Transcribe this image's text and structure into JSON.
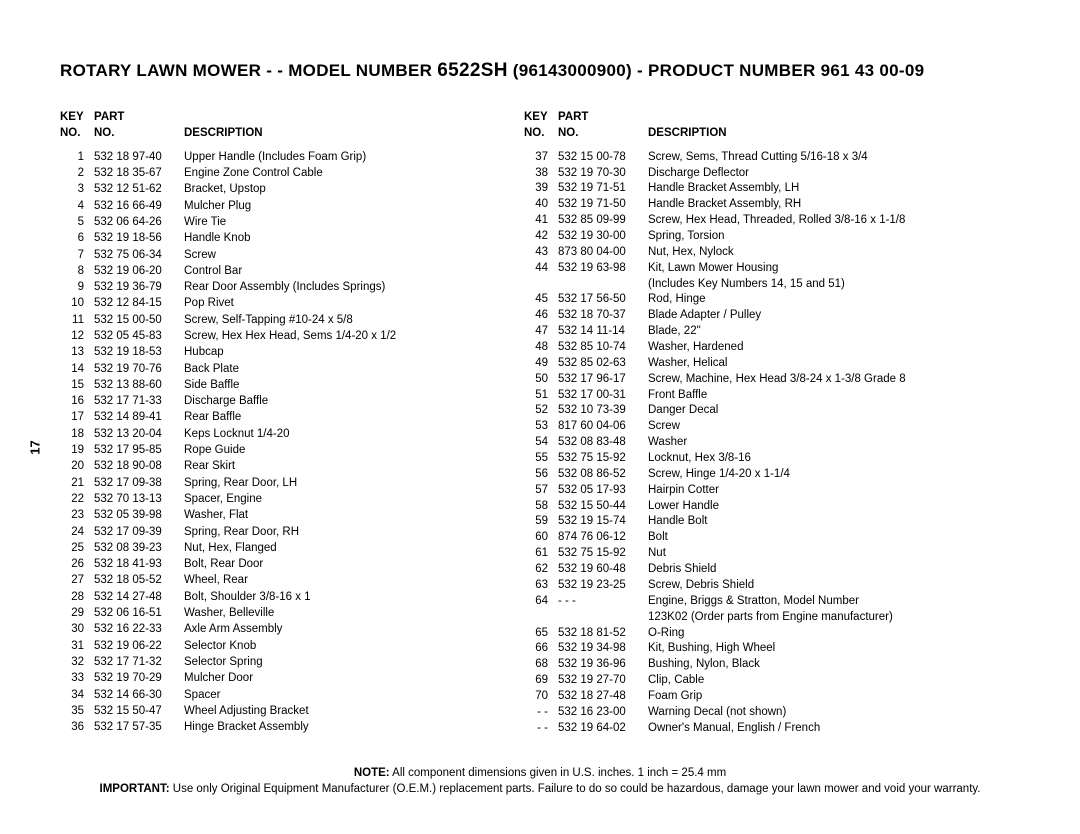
{
  "header": {
    "product_line": "ROTARY LAWN MOWER - - MODEL NUMBER ",
    "model": "6522SH",
    "model_suffix": " (96143000900) - PRODUCT NUMBER 961 43 00-09"
  },
  "page_number": "17",
  "columns": {
    "key": "KEY\nNO.",
    "part": "PART\nNO.",
    "desc": "DESCRIPTION"
  },
  "left": [
    {
      "k": "1",
      "p": "532 18 97-40",
      "d": "Upper Handle (Includes Foam Grip)"
    },
    {
      "k": "2",
      "p": "532 18 35-67",
      "d": "Engine Zone Control Cable"
    },
    {
      "k": "3",
      "p": "532 12 51-62",
      "d": "Bracket, Upstop"
    },
    {
      "k": "4",
      "p": "532 16 66-49",
      "d": "Mulcher Plug"
    },
    {
      "k": "5",
      "p": "532 06 64-26",
      "d": "Wire Tie"
    },
    {
      "k": "6",
      "p": "532 19 18-56",
      "d": "Handle Knob"
    },
    {
      "k": "7",
      "p": "532 75 06-34",
      "d": "Screw"
    },
    {
      "k": "8",
      "p": "532 19 06-20",
      "d": "Control Bar"
    },
    {
      "k": "9",
      "p": "532 19 36-79",
      "d": "Rear Door Assembly (Includes Springs)"
    },
    {
      "k": "10",
      "p": "532 12 84-15",
      "d": "Pop Rivet"
    },
    {
      "k": "11",
      "p": "532 15 00-50",
      "d": "Screw, Self-Tapping  #10-24 x 5/8"
    },
    {
      "k": "12",
      "p": "532 05 45-83",
      "d": "Screw, Hex Hex Head, Sems  1/4-20 x 1/2"
    },
    {
      "k": "13",
      "p": "532 19 18-53",
      "d": "Hubcap"
    },
    {
      "k": "14",
      "p": "532 19 70-76",
      "d": "Back Plate"
    },
    {
      "k": "15",
      "p": "532 13 88-60",
      "d": "Side Baffle"
    },
    {
      "k": "16",
      "p": "532 17 71-33",
      "d": "Discharge Baffle"
    },
    {
      "k": "17",
      "p": "532 14 89-41",
      "d": "Rear Baffle"
    },
    {
      "k": "18",
      "p": "532 13 20-04",
      "d": "Keps Locknut  1/4-20"
    },
    {
      "k": "19",
      "p": "532 17 95-85",
      "d": "Rope Guide"
    },
    {
      "k": "20",
      "p": "532 18 90-08",
      "d": "Rear Skirt"
    },
    {
      "k": "21",
      "p": "532 17 09-38",
      "d": "Spring, Rear Door, LH"
    },
    {
      "k": "22",
      "p": "532 70 13-13",
      "d": "Spacer, Engine"
    },
    {
      "k": "23",
      "p": "532 05 39-98",
      "d": "Washer, Flat"
    },
    {
      "k": "24",
      "p": "532 17 09-39",
      "d": "Spring, Rear Door, RH"
    },
    {
      "k": "25",
      "p": "532 08 39-23",
      "d": "Nut, Hex, Flanged"
    },
    {
      "k": "26",
      "p": "532 18 41-93",
      "d": "Bolt, Rear Door"
    },
    {
      "k": "27",
      "p": "532 18 05-52",
      "d": "Wheel, Rear"
    },
    {
      "k": "28",
      "p": "532 14 27-48",
      "d": "Bolt, Shoulder  3/8-16 x 1"
    },
    {
      "k": "29",
      "p": "532 06 16-51",
      "d": "Washer, Belleville"
    },
    {
      "k": "30",
      "p": "532 16 22-33",
      "d": "Axle Arm Assembly"
    },
    {
      "k": "31",
      "p": "532 19 06-22",
      "d": "Selector Knob"
    },
    {
      "k": "32",
      "p": "532 17 71-32",
      "d": "Selector Spring"
    },
    {
      "k": "33",
      "p": "532 19 70-29",
      "d": "Mulcher Door"
    },
    {
      "k": "34",
      "p": "532 14 66-30",
      "d": "Spacer"
    },
    {
      "k": "35",
      "p": "532 15 50-47",
      "d": "Wheel Adjusting Bracket"
    },
    {
      "k": "36",
      "p": "532 17 57-35",
      "d": "Hinge Bracket Assembly"
    }
  ],
  "right": [
    {
      "k": "37",
      "p": "532 15 00-78",
      "d": "Screw, Sems, Thread Cutting  5/16-18 x 3/4"
    },
    {
      "k": "38",
      "p": "532 19 70-30",
      "d": "Discharge Deflector"
    },
    {
      "k": "39",
      "p": "532 19 71-51",
      "d": "Handle Bracket Assembly, LH"
    },
    {
      "k": "40",
      "p": "532 19 71-50",
      "d": "Handle Bracket Assembly, RH"
    },
    {
      "k": "41",
      "p": "532 85 09-99",
      "d": "Screw, Hex Head, Threaded, Rolled  3/8-16 x 1-1/8"
    },
    {
      "k": "42",
      "p": "532 19 30-00",
      "d": "Spring, Torsion"
    },
    {
      "k": "43",
      "p": "873 80 04-00",
      "d": "Nut, Hex, Nylock"
    },
    {
      "k": "44",
      "p": "532 19 63-98",
      "d": "Kit, Lawn Mower Housing"
    },
    {
      "k": "",
      "p": "",
      "d": "(Includes Key Numbers 14, 15 and 51)"
    },
    {
      "k": "45",
      "p": "532 17 56-50",
      "d": "Rod, Hinge"
    },
    {
      "k": "46",
      "p": "532 18 70-37",
      "d": "Blade Adapter / Pulley"
    },
    {
      "k": "47",
      "p": "532 14 11-14",
      "d": "Blade, 22\""
    },
    {
      "k": "48",
      "p": "532 85 10-74",
      "d": "Washer, Hardened"
    },
    {
      "k": "49",
      "p": "532 85 02-63",
      "d": "Washer, Helical"
    },
    {
      "k": "50",
      "p": "532 17 96-17",
      "d": "Screw, Machine, Hex Head  3/8-24 x 1-3/8 Grade 8"
    },
    {
      "k": "51",
      "p": "532 17 00-31",
      "d": "Front Baffle"
    },
    {
      "k": "52",
      "p": "532 10 73-39",
      "d": "Danger Decal"
    },
    {
      "k": "53",
      "p": "817 60 04-06",
      "d": "Screw"
    },
    {
      "k": "54",
      "p": "532 08 83-48",
      "d": "Washer"
    },
    {
      "k": "55",
      "p": "532 75 15-92",
      "d": "Locknut, Hex  3/8-16"
    },
    {
      "k": "56",
      "p": "532 08 86-52",
      "d": "Screw, Hinge  1/4-20 x 1-1/4"
    },
    {
      "k": "57",
      "p": "532 05 17-93",
      "d": "Hairpin Cotter"
    },
    {
      "k": "58",
      "p": "532 15 50-44",
      "d": "Lower Handle"
    },
    {
      "k": "59",
      "p": "532 19 15-74",
      "d": "Handle Bolt"
    },
    {
      "k": "60",
      "p": "874 76 06-12",
      "d": "Bolt"
    },
    {
      "k": "61",
      "p": "532 75 15-92",
      "d": "Nut"
    },
    {
      "k": "62",
      "p": "532 19 60-48",
      "d": "Debris Shield"
    },
    {
      "k": "63",
      "p": "532 19 23-25",
      "d": "Screw, Debris Shield"
    },
    {
      "k": "64",
      "p": "   - - -",
      "d": "Engine, Briggs & Stratton, Model Number"
    },
    {
      "k": "",
      "p": "",
      "d": "123K02 (Order parts from Engine manufacturer)"
    },
    {
      "k": "65",
      "p": "532 18 81-52",
      "d": "O-Ring"
    },
    {
      "k": "66",
      "p": "532 19 34-98",
      "d": "Kit, Bushing, High Wheel"
    },
    {
      "k": "68",
      "p": "532 19 36-96",
      "d": "Bushing, Nylon, Black"
    },
    {
      "k": "69",
      "p": "532 19 27-70",
      "d": "Clip, Cable"
    },
    {
      "k": "70",
      "p": "532 18 27-48",
      "d": "Foam Grip"
    },
    {
      "k": "- -",
      "p": "532 16 23-00",
      "d": "Warning Decal (not shown)"
    },
    {
      "k": "- -",
      "p": "532 19 64-02",
      "d": "Owner's Manual, English / French"
    }
  ],
  "footer": {
    "note_label": "NOTE:",
    "note_text": " All component dimensions given in U.S. inches.  1 inch = 25.4 mm",
    "imp_label": "IMPORTANT:",
    "imp_text": " Use only Original Equipment Manufacturer (O.E.M.) replacement parts.  Failure to do so could be hazardous, damage your lawn mower and void your warranty."
  }
}
